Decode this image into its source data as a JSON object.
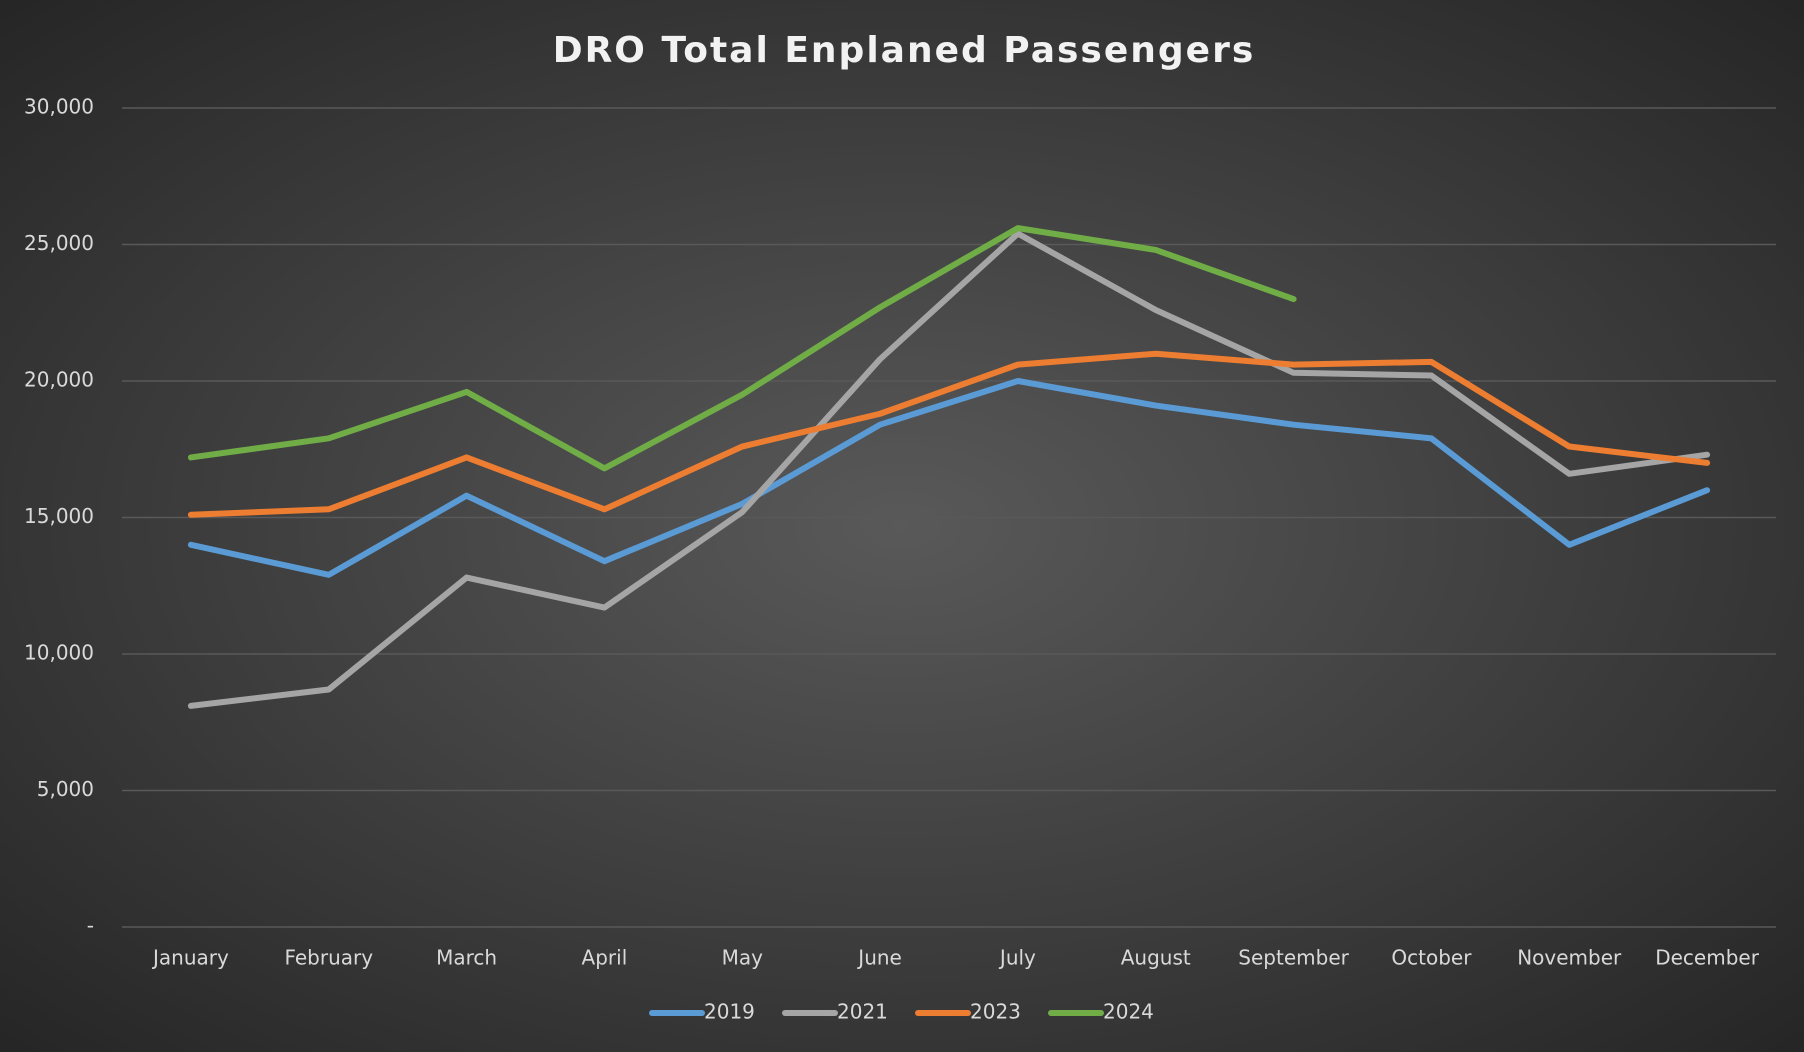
{
  "chart_data": {
    "type": "line",
    "title": "DRO Total Enplaned Passengers",
    "categories": [
      "January",
      "February",
      "March",
      "April",
      "May",
      "June",
      "July",
      "August",
      "September",
      "October",
      "November",
      "December"
    ],
    "series": [
      {
        "name": "2019",
        "color": "#5b9bd5",
        "values": [
          14000,
          12900,
          15800,
          13400,
          15500,
          18400,
          20000,
          19100,
          18400,
          17900,
          14000,
          16000
        ]
      },
      {
        "name": "2021",
        "color": "#a5a5a5",
        "values": [
          8100,
          8700,
          12800,
          11700,
          15200,
          20800,
          25400,
          22600,
          20300,
          20200,
          16600,
          17300
        ]
      },
      {
        "name": "2023",
        "color": "#ed7d31",
        "values": [
          15100,
          15300,
          17200,
          15300,
          17600,
          18800,
          20600,
          21000,
          20600,
          20700,
          17600,
          17000
        ]
      },
      {
        "name": "2024",
        "color": "#70ad47",
        "values": [
          17200,
          17900,
          19600,
          16800,
          19500,
          22700,
          25600,
          24800,
          23000,
          null,
          null,
          null
        ]
      }
    ],
    "ylim": [
      0,
      30000
    ],
    "yticks": [
      {
        "value": 0,
        "label": "-"
      },
      {
        "value": 5000,
        "label": "5,000"
      },
      {
        "value": 10000,
        "label": "10,000"
      },
      {
        "value": 15000,
        "label": "15,000"
      },
      {
        "value": 20000,
        "label": "20,000"
      },
      {
        "value": 25000,
        "label": "25,000"
      },
      {
        "value": 30000,
        "label": "30,000"
      }
    ],
    "grid": true,
    "legend": "bottom"
  }
}
